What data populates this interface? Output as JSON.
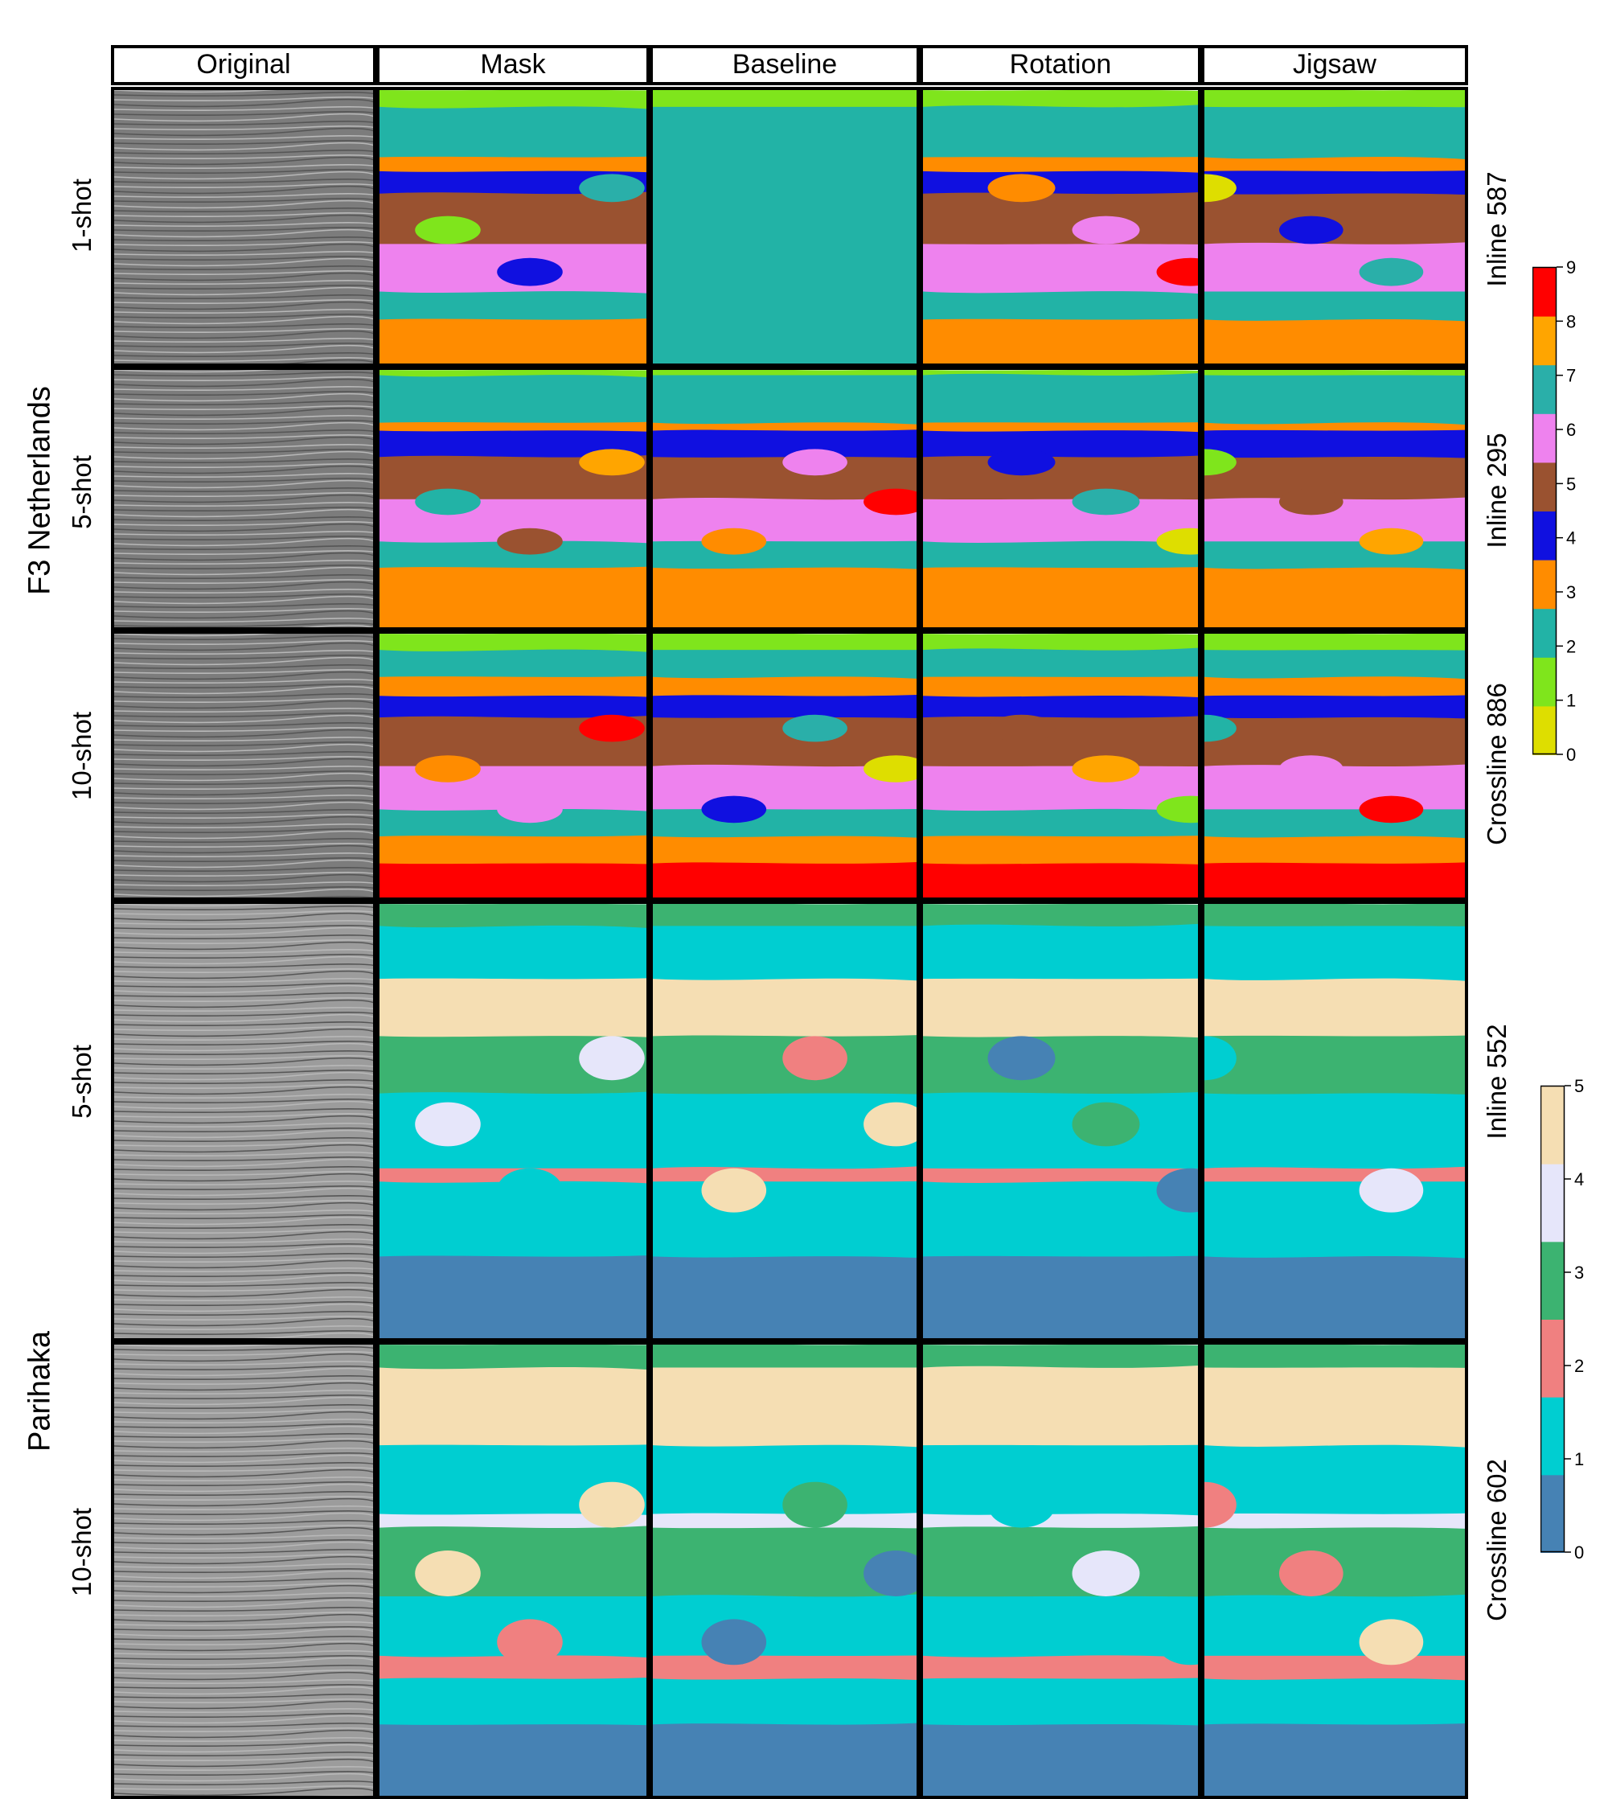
{
  "columns": [
    "Original",
    "Mask",
    "Baseline",
    "Rotation",
    "Jigsaw"
  ],
  "groups": [
    {
      "name": "F3 Netherlands",
      "rows": [
        {
          "shot": "1-shot",
          "section": "Inline  587"
        },
        {
          "shot": "5-shot",
          "section": "Inline  295"
        },
        {
          "shot": "10-shot",
          "section": "Crossline 886"
        }
      ],
      "colorbar": {
        "ticks": [
          "0",
          "1",
          "2",
          "3",
          "4",
          "5",
          "6",
          "7",
          "8",
          "9"
        ],
        "colors": [
          "#dede00",
          "#7fe51c",
          "#22b3a6",
          "#ff8c00",
          "#1010e0",
          "#9a5230",
          "#ee82ee",
          "#2aafa9",
          "#ffa500",
          "#ff0000"
        ]
      }
    },
    {
      "name": "Parihaka",
      "rows": [
        {
          "shot": "5-shot",
          "section": "Inline  552"
        },
        {
          "shot": "10-shot",
          "section": "Crossline 602"
        }
      ],
      "colorbar": {
        "ticks": [
          "0",
          "1",
          "2",
          "3",
          "4",
          "5"
        ],
        "colors": [
          "#4682b4",
          "#00ced1",
          "#f08080",
          "#3cb371",
          "#e6e6fa",
          "#f5deb3"
        ]
      }
    }
  ]
}
